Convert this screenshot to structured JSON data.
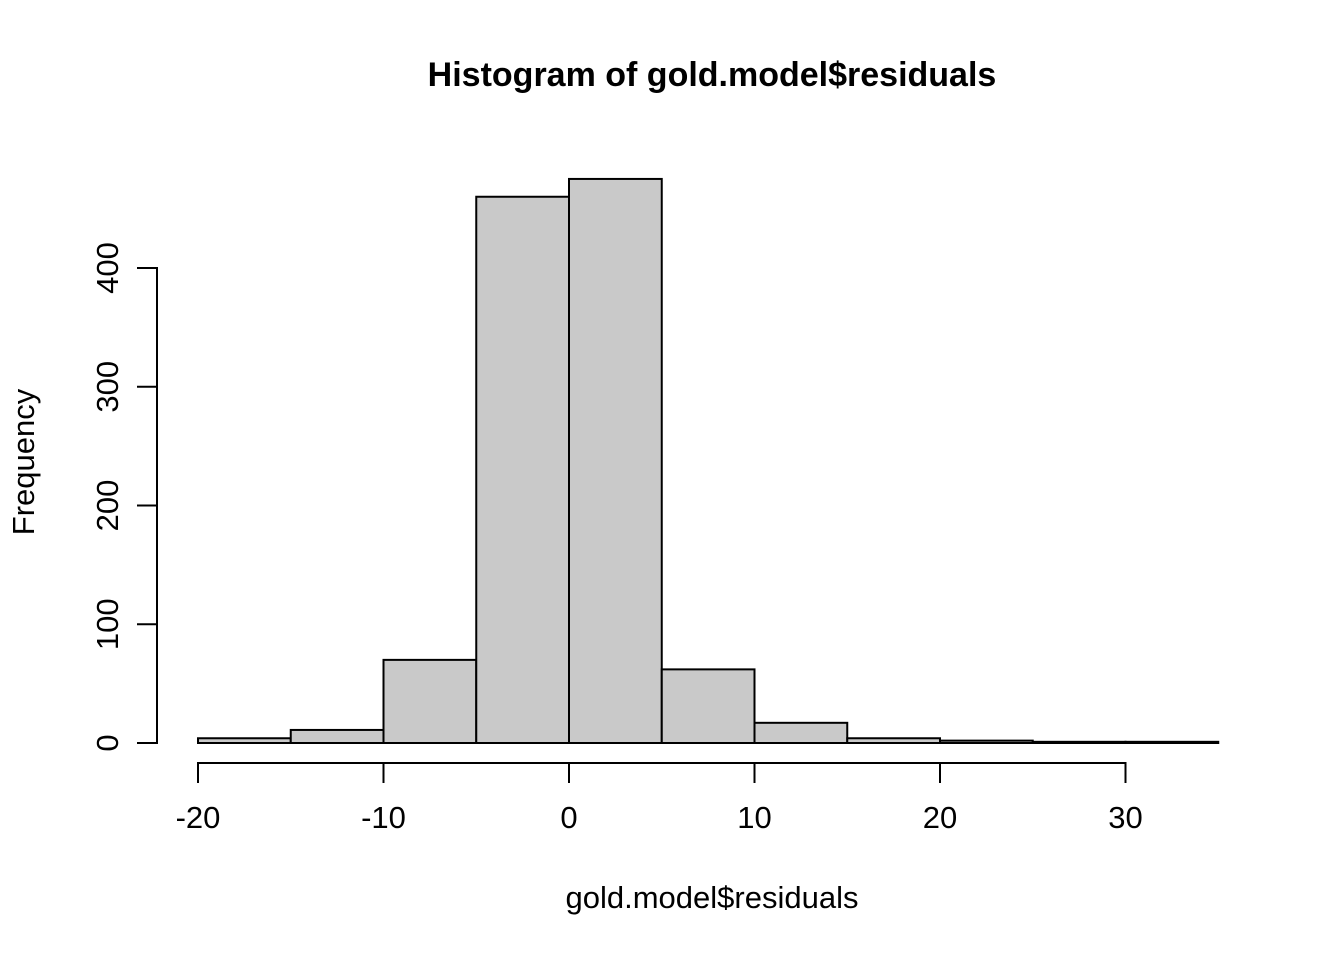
{
  "page": {
    "background_color": "#ffffff",
    "text_color": "#000000"
  },
  "chart_data": {
    "type": "bar",
    "subtype": "histogram",
    "title": "Histogram of gold.model$residuals",
    "xlabel": "gold.model$residuals",
    "ylabel": "Frequency",
    "breaks": [
      -20,
      -15,
      -10,
      -5,
      0,
      5,
      10,
      15,
      20,
      25,
      30,
      35
    ],
    "counts": [
      4,
      11,
      70,
      460,
      475,
      62,
      17,
      4,
      2,
      1,
      1
    ],
    "x_ticks": [
      -20,
      -10,
      0,
      10,
      20,
      30
    ],
    "x_tick_labels": [
      "-20",
      "-10",
      "0",
      "10",
      "20",
      "30"
    ],
    "y_ticks": [
      0,
      100,
      200,
      300,
      400
    ],
    "y_tick_labels": [
      "0",
      "100",
      "200",
      "300",
      "400"
    ],
    "xlim": [
      -20,
      35
    ],
    "ylim": [
      0,
      400
    ],
    "grid": "off",
    "legend": "none",
    "bar_fill": "#c9c9c9",
    "bar_stroke": "#000000",
    "axis_color": "#000000"
  }
}
